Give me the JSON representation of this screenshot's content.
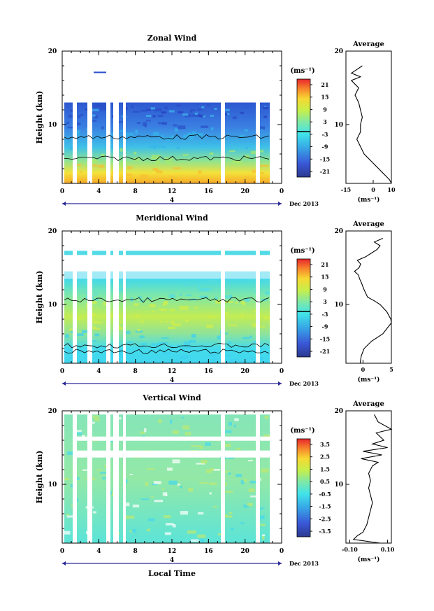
{
  "panels": [
    {
      "id": "zonal",
      "title": "Zonal Wind",
      "colorbar": {
        "unit": "(ms⁻¹)",
        "ticks": [
          "21",
          "15",
          "9",
          "3",
          "-3",
          "-9",
          "-15",
          "-21"
        ],
        "range": [
          -24,
          24
        ]
      },
      "profile": {
        "title": "Average",
        "xticks": [
          "-15",
          "0",
          "10"
        ],
        "xrange": [
          -15,
          10
        ],
        "xlabel": "(ms⁻¹)"
      }
    },
    {
      "id": "meridional",
      "title": "Meridional Wind",
      "colorbar": {
        "unit": "(ms⁻¹)",
        "ticks": [
          "21",
          "15",
          "9",
          "3",
          "-3",
          "-9",
          "-15",
          "-21"
        ],
        "range": [
          -24,
          24
        ]
      },
      "profile": {
        "title": "Average",
        "xticks": [
          "0",
          "5"
        ],
        "xrange": [
          -3,
          5
        ],
        "xlabel": "(ms⁻¹)"
      }
    },
    {
      "id": "vertical",
      "title": "Vertical Wind",
      "colorbar": {
        "unit": "(ms⁻¹)",
        "ticks": [
          "3.5",
          "2.5",
          "1.5",
          "0.5",
          "-0.5",
          "-1.5",
          "-2.5",
          "-3.5"
        ],
        "range": [
          -4,
          4
        ]
      },
      "profile": {
        "title": "Average",
        "xticks": [
          "-0.10",
          "0.10"
        ],
        "xrange": [
          -0.12,
          0.12
        ],
        "xlabel": "(ms⁻¹)"
      }
    }
  ],
  "axes": {
    "ylabel": "Height (km)",
    "yticks": [
      "20",
      "10"
    ],
    "xticks": [
      "0",
      "4",
      "8",
      "12",
      "16",
      "20",
      "0"
    ],
    "date_day": "4",
    "date_month": "Dec 2013",
    "xlabel": "Local Time"
  },
  "chart_data": [
    {
      "type": "heatmap",
      "title": "Zonal Wind",
      "xlabel": "Local Time",
      "ylabel": "Height (km)",
      "xlim": [
        0,
        24
      ],
      "ylim": [
        2,
        20
      ],
      "colorbar_unit": "(ms⁻¹)",
      "colorbar_range": [
        -24,
        24
      ],
      "description_values": {
        "height_km": [
          2,
          3,
          4,
          5,
          6,
          7,
          8,
          9,
          10,
          11,
          12,
          13
        ],
        "typical_speed": [
          15,
          13,
          9,
          5,
          2,
          -3,
          -7,
          -10,
          -13,
          -14,
          -10,
          -6
        ]
      }
    },
    {
      "type": "line",
      "title": "Average",
      "xlabel": "(ms⁻¹)",
      "ylabel": "Height (km)",
      "xlim": [
        -15,
        10
      ],
      "ylim": [
        2,
        20
      ],
      "series": [
        {
          "x": [
            10,
            9,
            7,
            5,
            3,
            1,
            -1,
            -3,
            -5,
            -6,
            -7,
            -8,
            -9,
            -8,
            -7,
            -7,
            -6,
            -7,
            -8,
            -9,
            -10,
            -9,
            -8,
            -10,
            -12,
            -7,
            -12,
            -9,
            -6
          ],
          "y": [
            2,
            2.5,
            3,
            3.5,
            4,
            4.5,
            5,
            5.5,
            6,
            6.5,
            7,
            7.5,
            8,
            8.5,
            9,
            10,
            11,
            12,
            13,
            13.5,
            14,
            14.5,
            15,
            15.5,
            16,
            16.5,
            17,
            17.5,
            18
          ]
        }
      ]
    },
    {
      "type": "heatmap",
      "title": "Meridional Wind",
      "xlabel": "Local Time",
      "ylabel": "Height (km)",
      "xlim": [
        0,
        24
      ],
      "ylim": [
        2,
        20
      ],
      "colorbar_unit": "(ms⁻¹)",
      "colorbar_range": [
        -24,
        24
      ],
      "description_values": {
        "height_km": [
          2,
          3,
          4,
          5,
          6,
          7,
          8,
          9,
          10,
          11,
          12,
          13,
          17
        ],
        "typical_speed": [
          -3,
          -3,
          -2,
          1,
          3,
          5,
          6,
          5,
          3,
          0,
          -2,
          -3,
          -3
        ]
      }
    },
    {
      "type": "line",
      "title": "Average",
      "xlabel": "(ms⁻¹)",
      "ylabel": "Height (km)",
      "xlim": [
        -3,
        5
      ],
      "ylim": [
        2,
        20
      ],
      "series": [
        {
          "x": [
            -0.5,
            -0.3,
            0.2,
            1.5,
            3.5,
            4.5,
            5,
            4.9,
            4.2,
            3,
            2,
            0.8,
            0.2,
            -0.3,
            -0.6,
            -0.8,
            -1.5,
            -0.7,
            -0.4,
            -1,
            0.5,
            1.5,
            2.5,
            3,
            2,
            3.5
          ],
          "y": [
            2,
            3,
            4,
            5,
            6,
            7,
            7.5,
            8,
            9,
            10,
            10.5,
            11,
            12,
            13,
            13.5,
            14,
            14.5,
            15,
            15.5,
            16,
            16.5,
            17,
            17.5,
            18,
            18.5,
            19
          ]
        }
      ]
    },
    {
      "type": "heatmap",
      "title": "Vertical Wind",
      "xlabel": "Local Time",
      "ylabel": "Height (km)",
      "xlim": [
        0,
        24
      ],
      "ylim": [
        2,
        20
      ],
      "colorbar_unit": "(ms⁻¹)",
      "colorbar_range": [
        -4,
        4
      ],
      "description_values": {
        "height_km": [
          2,
          5,
          8,
          11,
          14,
          17,
          19
        ],
        "typical_speed": [
          -0.3,
          -0.2,
          0,
          0.1,
          0.2,
          0,
          0.1
        ]
      }
    },
    {
      "type": "line",
      "title": "Average",
      "xlabel": "(ms⁻¹)",
      "ylabel": "Height (km)",
      "xlim": [
        -0.12,
        0.12
      ],
      "ylim": [
        2,
        20
      ],
      "series": [
        {
          "x": [
            0.06,
            -0.08,
            -0.06,
            -0.03,
            -0.01,
            0.0,
            0.01,
            0.02,
            0.01,
            0.0,
            0.01,
            0.0,
            0.02,
            0.05,
            -0.04,
            0.07,
            -0.03,
            0.1,
            0.02,
            0.08,
            0.04,
            0.12,
            0.05,
            0.03
          ],
          "y": [
            2,
            2.5,
            3,
            3.5,
            4.5,
            5.5,
            6.5,
            7.5,
            8.5,
            9.5,
            10.5,
            11.5,
            12.5,
            13,
            13.5,
            14,
            14.5,
            15,
            15.5,
            16,
            17,
            17.5,
            18.5,
            19.5
          ]
        }
      ]
    }
  ]
}
